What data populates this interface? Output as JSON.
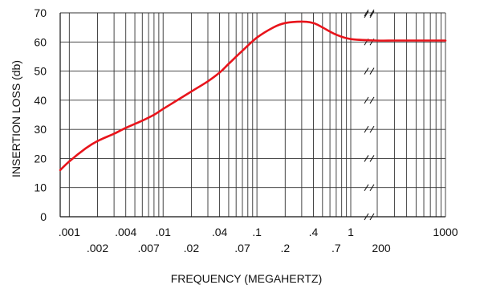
{
  "chart_data": {
    "type": "line",
    "title": "",
    "xlabel": "FREQUENCY (MEGAHERTZ)",
    "ylabel": "INSERTION LOSS (db)",
    "x_scale": "log (broken axis)",
    "ylim": [
      0,
      70
    ],
    "yticks": [
      0,
      10,
      20,
      30,
      40,
      50,
      60,
      70
    ],
    "grid": true,
    "axis_break_between": [
      1,
      200
    ],
    "xtick_labels_row1": [
      {
        "value": 0.001,
        "label": ".001"
      },
      {
        "value": 0.004,
        "label": ".004"
      },
      {
        "value": 0.01,
        "label": ".01"
      },
      {
        "value": 0.04,
        "label": ".04"
      },
      {
        "value": 0.1,
        "label": ".1"
      },
      {
        "value": 0.4,
        "label": ".4"
      },
      {
        "value": 1,
        "label": "1"
      },
      {
        "value": 1000,
        "label": "1000"
      }
    ],
    "xtick_labels_row2": [
      {
        "value": 0.002,
        "label": ".002"
      },
      {
        "value": 0.007,
        "label": ".007"
      },
      {
        "value": 0.02,
        "label": ".02"
      },
      {
        "value": 0.07,
        "label": ".07"
      },
      {
        "value": 0.2,
        "label": ".2"
      },
      {
        "value": 0.7,
        "label": ".7"
      },
      {
        "value": 200,
        "label": "200"
      }
    ],
    "series": [
      {
        "color": "#e8141b",
        "points": [
          [
            0.0008,
            16
          ],
          [
            0.001,
            19
          ],
          [
            0.0015,
            23.5
          ],
          [
            0.002,
            26
          ],
          [
            0.003,
            28.5
          ],
          [
            0.004,
            30.5
          ],
          [
            0.006,
            33
          ],
          [
            0.008,
            35
          ],
          [
            0.01,
            37
          ],
          [
            0.015,
            40.5
          ],
          [
            0.02,
            43
          ],
          [
            0.03,
            46.5
          ],
          [
            0.04,
            49.5
          ],
          [
            0.05,
            52.5
          ],
          [
            0.07,
            57
          ],
          [
            0.1,
            61.5
          ],
          [
            0.15,
            65
          ],
          [
            0.2,
            66.5
          ],
          [
            0.3,
            67
          ],
          [
            0.4,
            66.5
          ],
          [
            0.5,
            65
          ],
          [
            0.7,
            62.5
          ],
          [
            1,
            61
          ],
          [
            200,
            60.5
          ],
          [
            300,
            60.5
          ],
          [
            500,
            60.5
          ],
          [
            1000,
            60.5
          ]
        ]
      }
    ]
  }
}
